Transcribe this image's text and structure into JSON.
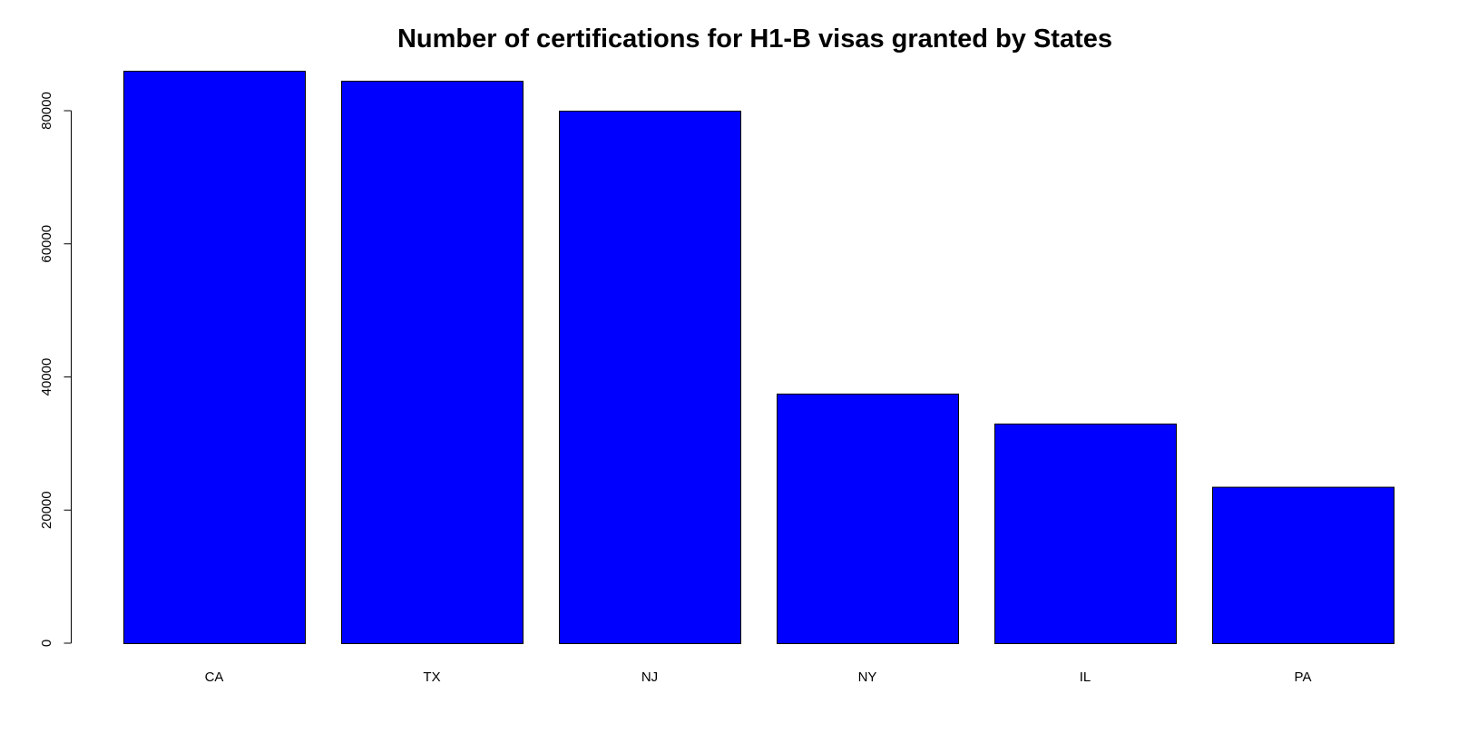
{
  "chart_data": {
    "type": "bar",
    "title": "Number of certifications for H1-B visas granted by States",
    "xlabel": "",
    "ylabel": "",
    "categories": [
      "CA",
      "TX",
      "NJ",
      "NY",
      "IL",
      "PA"
    ],
    "values": [
      86000,
      84500,
      80000,
      37500,
      33000,
      23500
    ],
    "ylim": [
      0,
      86000
    ],
    "yticks": [
      0,
      20000,
      40000,
      60000,
      80000
    ],
    "ytick_labels": [
      "0",
      "20000",
      "40000",
      "60000",
      "80000"
    ],
    "grid": false,
    "legend": "none",
    "bar_color": "#0000ff",
    "border_color": "#000000"
  }
}
